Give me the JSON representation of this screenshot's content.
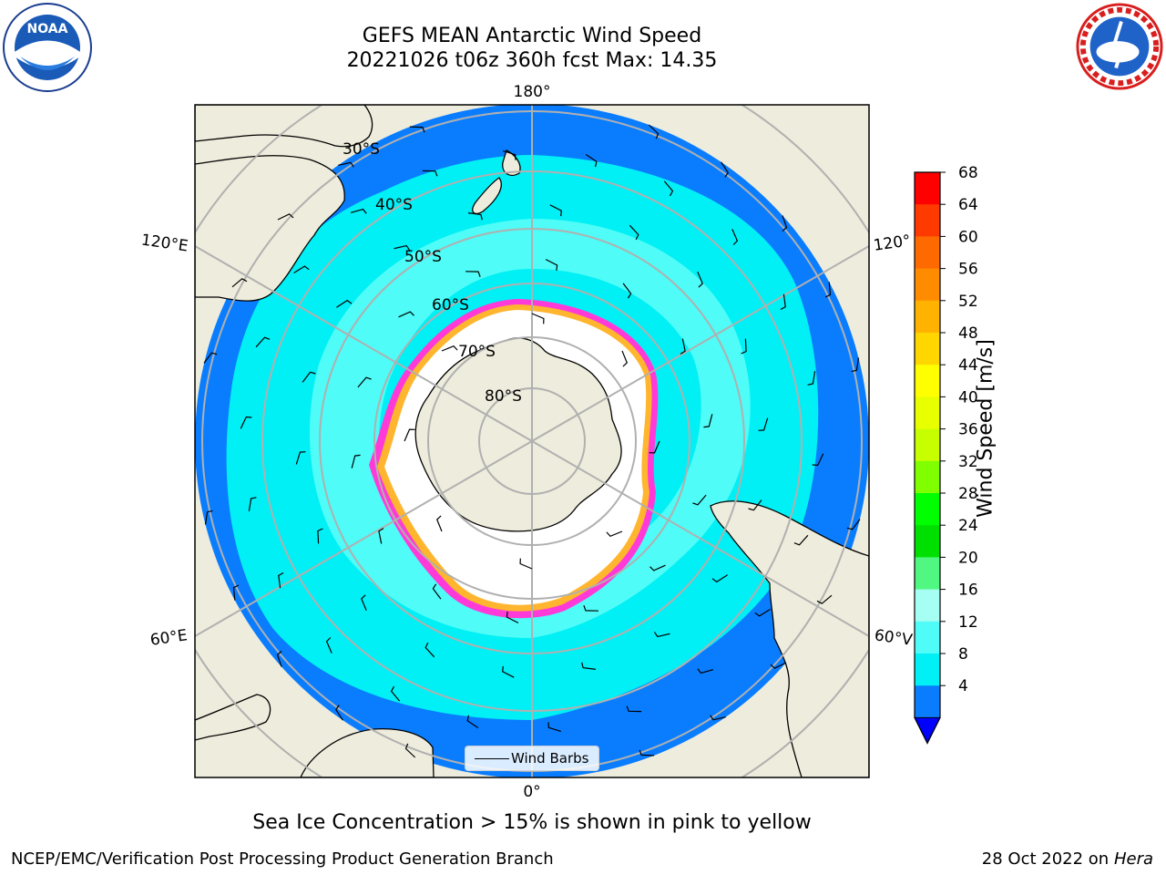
{
  "header": {
    "title_line1": "GEFS MEAN Antarctic Wind Speed",
    "title_line2": "20221026 t06z 360h fcst   Max: 14.35"
  },
  "logos": {
    "left": "noaa-logo",
    "right": "national-weather-service-logo"
  },
  "map": {
    "projection": "south-polar-stereographic",
    "longitude_labels": {
      "top": "180°",
      "bottom": "0°",
      "upper_left": "120°E",
      "upper_right": "120°",
      "lower_left": "60°E",
      "lower_right": "60°V"
    },
    "latitude_labels": [
      "30°S",
      "40°S",
      "50°S",
      "60°S",
      "70°S",
      "80°S"
    ],
    "colors": {
      "land": "#eeecdc",
      "ocean_4_8": "#0a7dff",
      "ocean_8_12": "#00f0f5",
      "ocean_12_16": "#4ffcf7",
      "sea_ice_edge": "#ff3ad8",
      "sea_ice_yellow": "#ffb52e",
      "grid": "#b0b0b0"
    }
  },
  "legend": {
    "label": "Wind Barbs"
  },
  "colorbar": {
    "label": "Wind Speed [m/s]",
    "ticks": [
      "68",
      "64",
      "60",
      "56",
      "52",
      "48",
      "44",
      "40",
      "36",
      "32",
      "28",
      "24",
      "20",
      "16",
      "12",
      "8",
      "4"
    ],
    "colors": [
      "#ff0000",
      "#ff3a00",
      "#ff6a00",
      "#ff8c00",
      "#ffb300",
      "#ffd600",
      "#ffff00",
      "#e8ff00",
      "#c8ff00",
      "#80ff00",
      "#00ff00",
      "#00e000",
      "#50f780",
      "#a5fff2",
      "#4ffcf7",
      "#00f0f5",
      "#0a7dff"
    ],
    "extend_color": "#0000ff"
  },
  "caption": "Sea Ice Concentration > 15% is shown in pink to yellow",
  "footer": {
    "left": "NCEP/EMC/Verification Post Processing Product Generation Branch",
    "right_date": "28 Oct 2022 on ",
    "right_host": "Hera"
  }
}
